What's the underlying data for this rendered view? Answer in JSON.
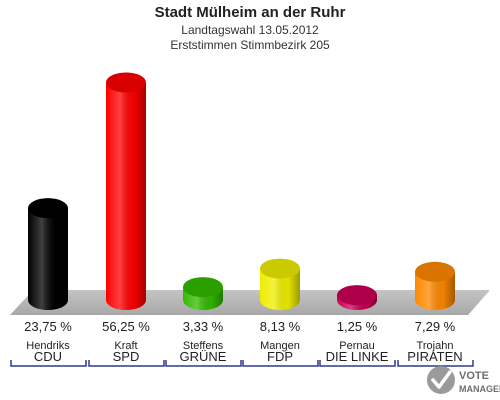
{
  "chart_data": {
    "type": "bar",
    "title": "Stadt Mülheim an der Ruhr",
    "subtitle_line1": "Landtagswahl 13.05.2012",
    "subtitle_line2": "Erststimmen Stimmbezirk 205",
    "candidates": [
      "Hendriks",
      "Kraft",
      "Steffens",
      "Mangen",
      "Pernau",
      "Trojahn"
    ],
    "categories": [
      "CDU",
      "SPD",
      "GRÜNE",
      "FDP",
      "DIE LINKE",
      "PIRATEN"
    ],
    "values": [
      23.75,
      56.25,
      3.33,
      8.13,
      1.25,
      7.29
    ],
    "value_labels": [
      "23,75 %",
      "56,25 %",
      "3,33 %",
      "8,13 %",
      "1,25 %",
      "7,29 %"
    ],
    "colors": [
      "#000000",
      "#ff0000",
      "#33bb00",
      "#eeee00",
      "#cc0055",
      "#ff8800"
    ],
    "ylim": [
      0,
      60
    ],
    "grid": false
  },
  "logo": {
    "line1": "VOTE",
    "line2": "MANAGER"
  }
}
